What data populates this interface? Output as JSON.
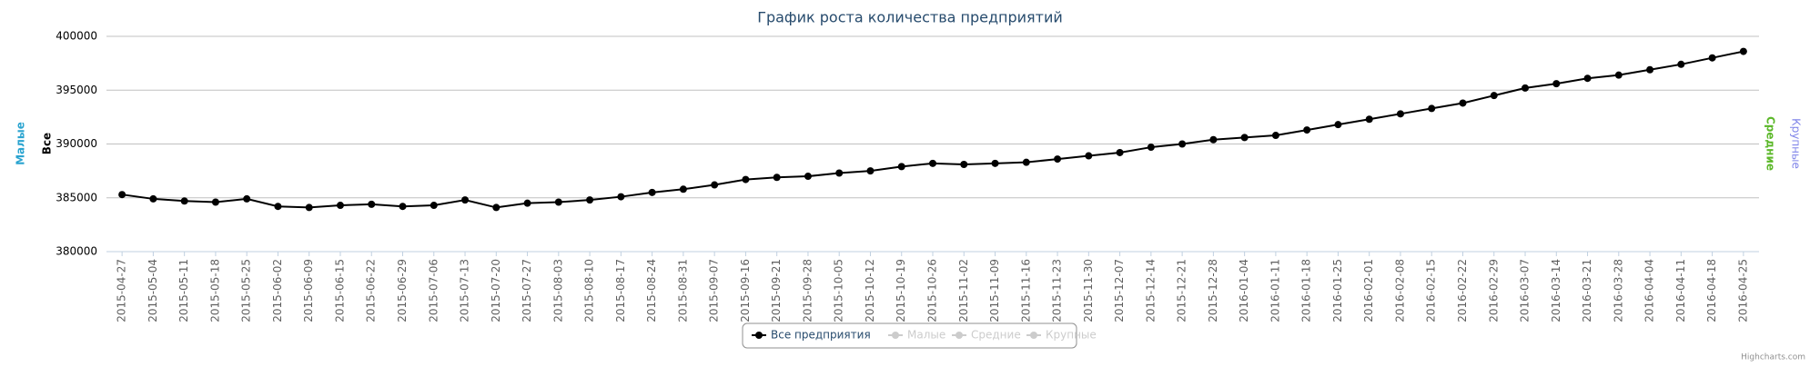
{
  "chart_data": {
    "type": "line",
    "title": "График роста количества предприятий",
    "categories": [
      "2015-04-27",
      "2015-05-04",
      "2015-05-11",
      "2015-05-18",
      "2015-05-25",
      "2015-06-02",
      "2015-06-09",
      "2015-06-15",
      "2015-06-22",
      "2015-06-29",
      "2015-07-06",
      "2015-07-13",
      "2015-07-20",
      "2015-07-27",
      "2015-08-03",
      "2015-08-10",
      "2015-08-17",
      "2015-08-24",
      "2015-08-31",
      "2015-09-07",
      "2015-09-16",
      "2015-09-21",
      "2015-09-28",
      "2015-10-05",
      "2015-10-12",
      "2015-10-19",
      "2015-10-26",
      "2015-11-02",
      "2015-11-09",
      "2015-11-16",
      "2015-11-23",
      "2015-11-30",
      "2015-12-07",
      "2015-12-14",
      "2015-12-21",
      "2015-12-28",
      "2016-01-04",
      "2016-01-11",
      "2016-01-18",
      "2016-01-25",
      "2016-02-01",
      "2016-02-08",
      "2016-02-15",
      "2016-02-22",
      "2016-02-29",
      "2016-03-07",
      "2016-03-14",
      "2016-03-21",
      "2016-03-28",
      "2016-04-04",
      "2016-04-11",
      "2016-04-18",
      "2016-04-25"
    ],
    "series": [
      {
        "name": "Все предприятия",
        "color": "#000000",
        "values": [
          385300,
          384900,
          384700,
          384600,
          384900,
          384200,
          384100,
          384300,
          384400,
          384200,
          384300,
          384800,
          384100,
          384500,
          384600,
          384800,
          385100,
          385500,
          385800,
          386200,
          386700,
          386900,
          387000,
          387300,
          387500,
          387900,
          388200,
          388100,
          388200,
          388300,
          388600,
          388900,
          389200,
          389700,
          390000,
          390400,
          390600,
          390800,
          391300,
          391800,
          392300,
          392800,
          393300,
          393800,
          394500,
          395200,
          395600,
          396100,
          396400,
          396900,
          397400,
          398000,
          398600
        ]
      },
      {
        "name": "Малые",
        "color": "#cccccc",
        "visible": false
      },
      {
        "name": "Средние",
        "color": "#cccccc",
        "visible": false
      },
      {
        "name": "Крупные",
        "color": "#cccccc",
        "visible": false
      }
    ],
    "ylim": [
      380000,
      400000
    ],
    "yticks": [
      380000,
      385000,
      390000,
      395000,
      400000
    ],
    "grid": true,
    "left_axis_titles": [
      {
        "text": "Малые",
        "color": "#2ba4d0"
      },
      {
        "text": "Все",
        "color": "#000000"
      }
    ],
    "right_axis_titles": [
      {
        "text": "Средние",
        "color": "#5cb82a"
      },
      {
        "text": "Крупные",
        "color": "#8085e9"
      }
    ],
    "legend": "bottom",
    "credits": "Highcharts.com"
  }
}
